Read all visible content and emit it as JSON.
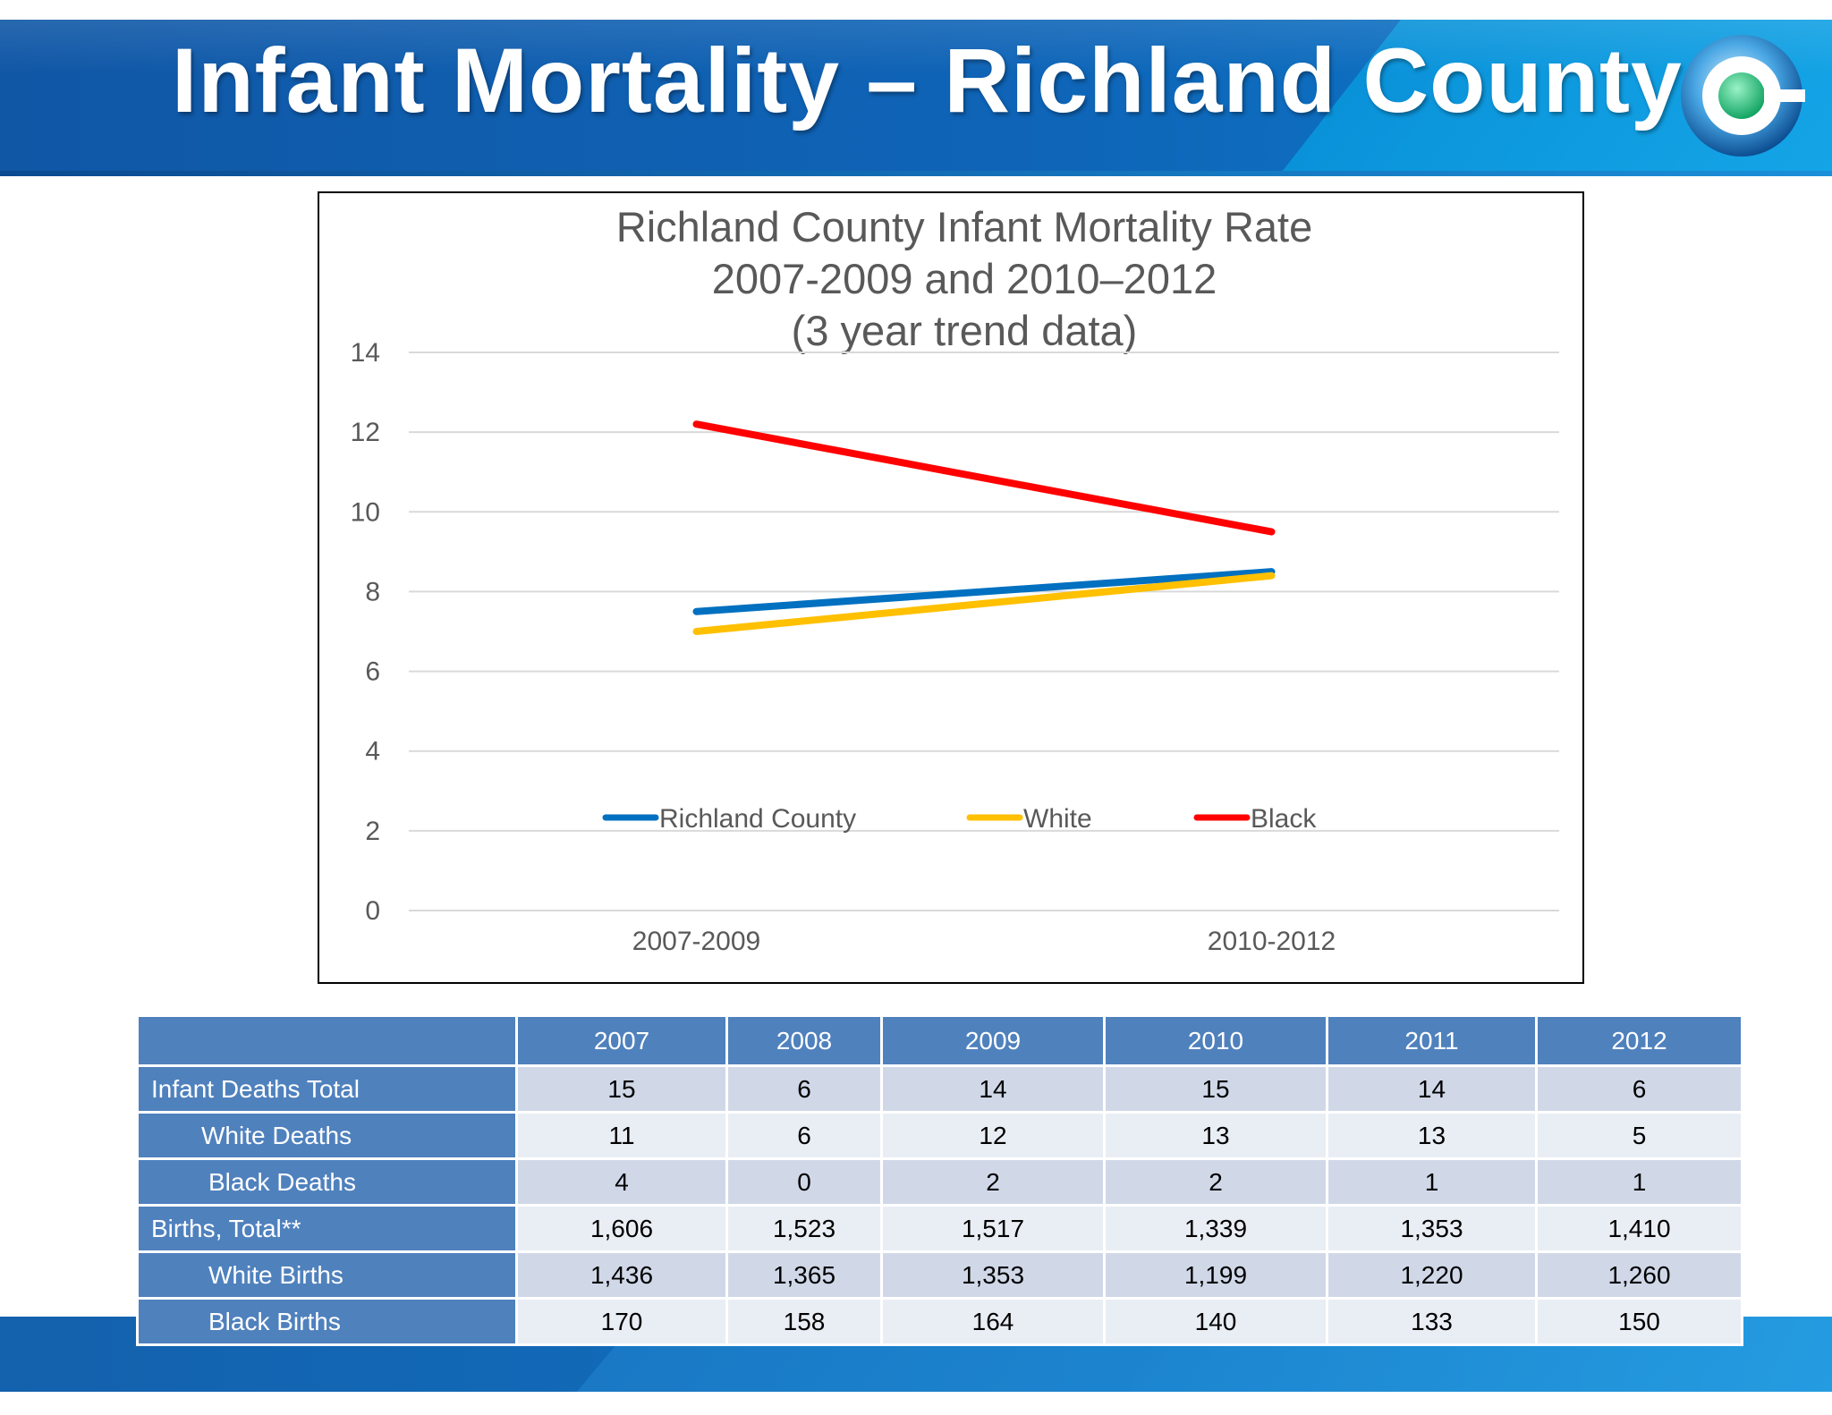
{
  "slide": {
    "title": "Infant Mortality – Richland County"
  },
  "chart_data": {
    "type": "line",
    "title": "Richland County Infant Mortality Rate\n2007-2009 and 2010–2012\n(3 year trend data)",
    "title_lines": [
      "Richland County Infant Mortality Rate",
      "2007-2009 and 2010–2012",
      "(3 year trend data)"
    ],
    "categories": [
      "2007-2009",
      "2010-2012"
    ],
    "series": [
      {
        "name": "Richland County",
        "color": "#0070c0",
        "values": [
          7.5,
          8.5
        ]
      },
      {
        "name": "White",
        "color": "#ffc000",
        "values": [
          7.0,
          8.4
        ]
      },
      {
        "name": "Black",
        "color": "#ff0000",
        "values": [
          12.2,
          9.5
        ]
      }
    ],
    "ylim": [
      0,
      14
    ],
    "yticks": [
      "0",
      "2",
      "4",
      "6",
      "8",
      "10",
      "12",
      "14"
    ],
    "grid": true,
    "legend_position": "inside-bottom"
  },
  "table": {
    "columns": [
      "",
      "2007",
      "2008",
      "2009",
      "2010",
      "2011",
      "2012"
    ],
    "rows": [
      {
        "label": "Infant Deaths Total",
        "values": [
          "15",
          "6",
          "14",
          "15",
          "14",
          "6"
        ]
      },
      {
        "label": "White Deaths",
        "values": [
          "11",
          "6",
          "12",
          "13",
          "13",
          "5"
        ]
      },
      {
        "label": "Black Deaths",
        "values": [
          "4",
          "0",
          "2",
          "2",
          "1",
          "1"
        ]
      },
      {
        "label": "Births, Total**",
        "values": [
          "1,606",
          "1,523",
          "1,517",
          "1,339",
          "1,353",
          "1,410"
        ]
      },
      {
        "label": "White Births",
        "values": [
          "1,436",
          "1,365",
          "1,353",
          "1,199",
          "1,220",
          "1,260"
        ]
      },
      {
        "label": "Black Births",
        "values": [
          "170",
          "158",
          "164",
          "140",
          "133",
          "150"
        ]
      }
    ]
  }
}
